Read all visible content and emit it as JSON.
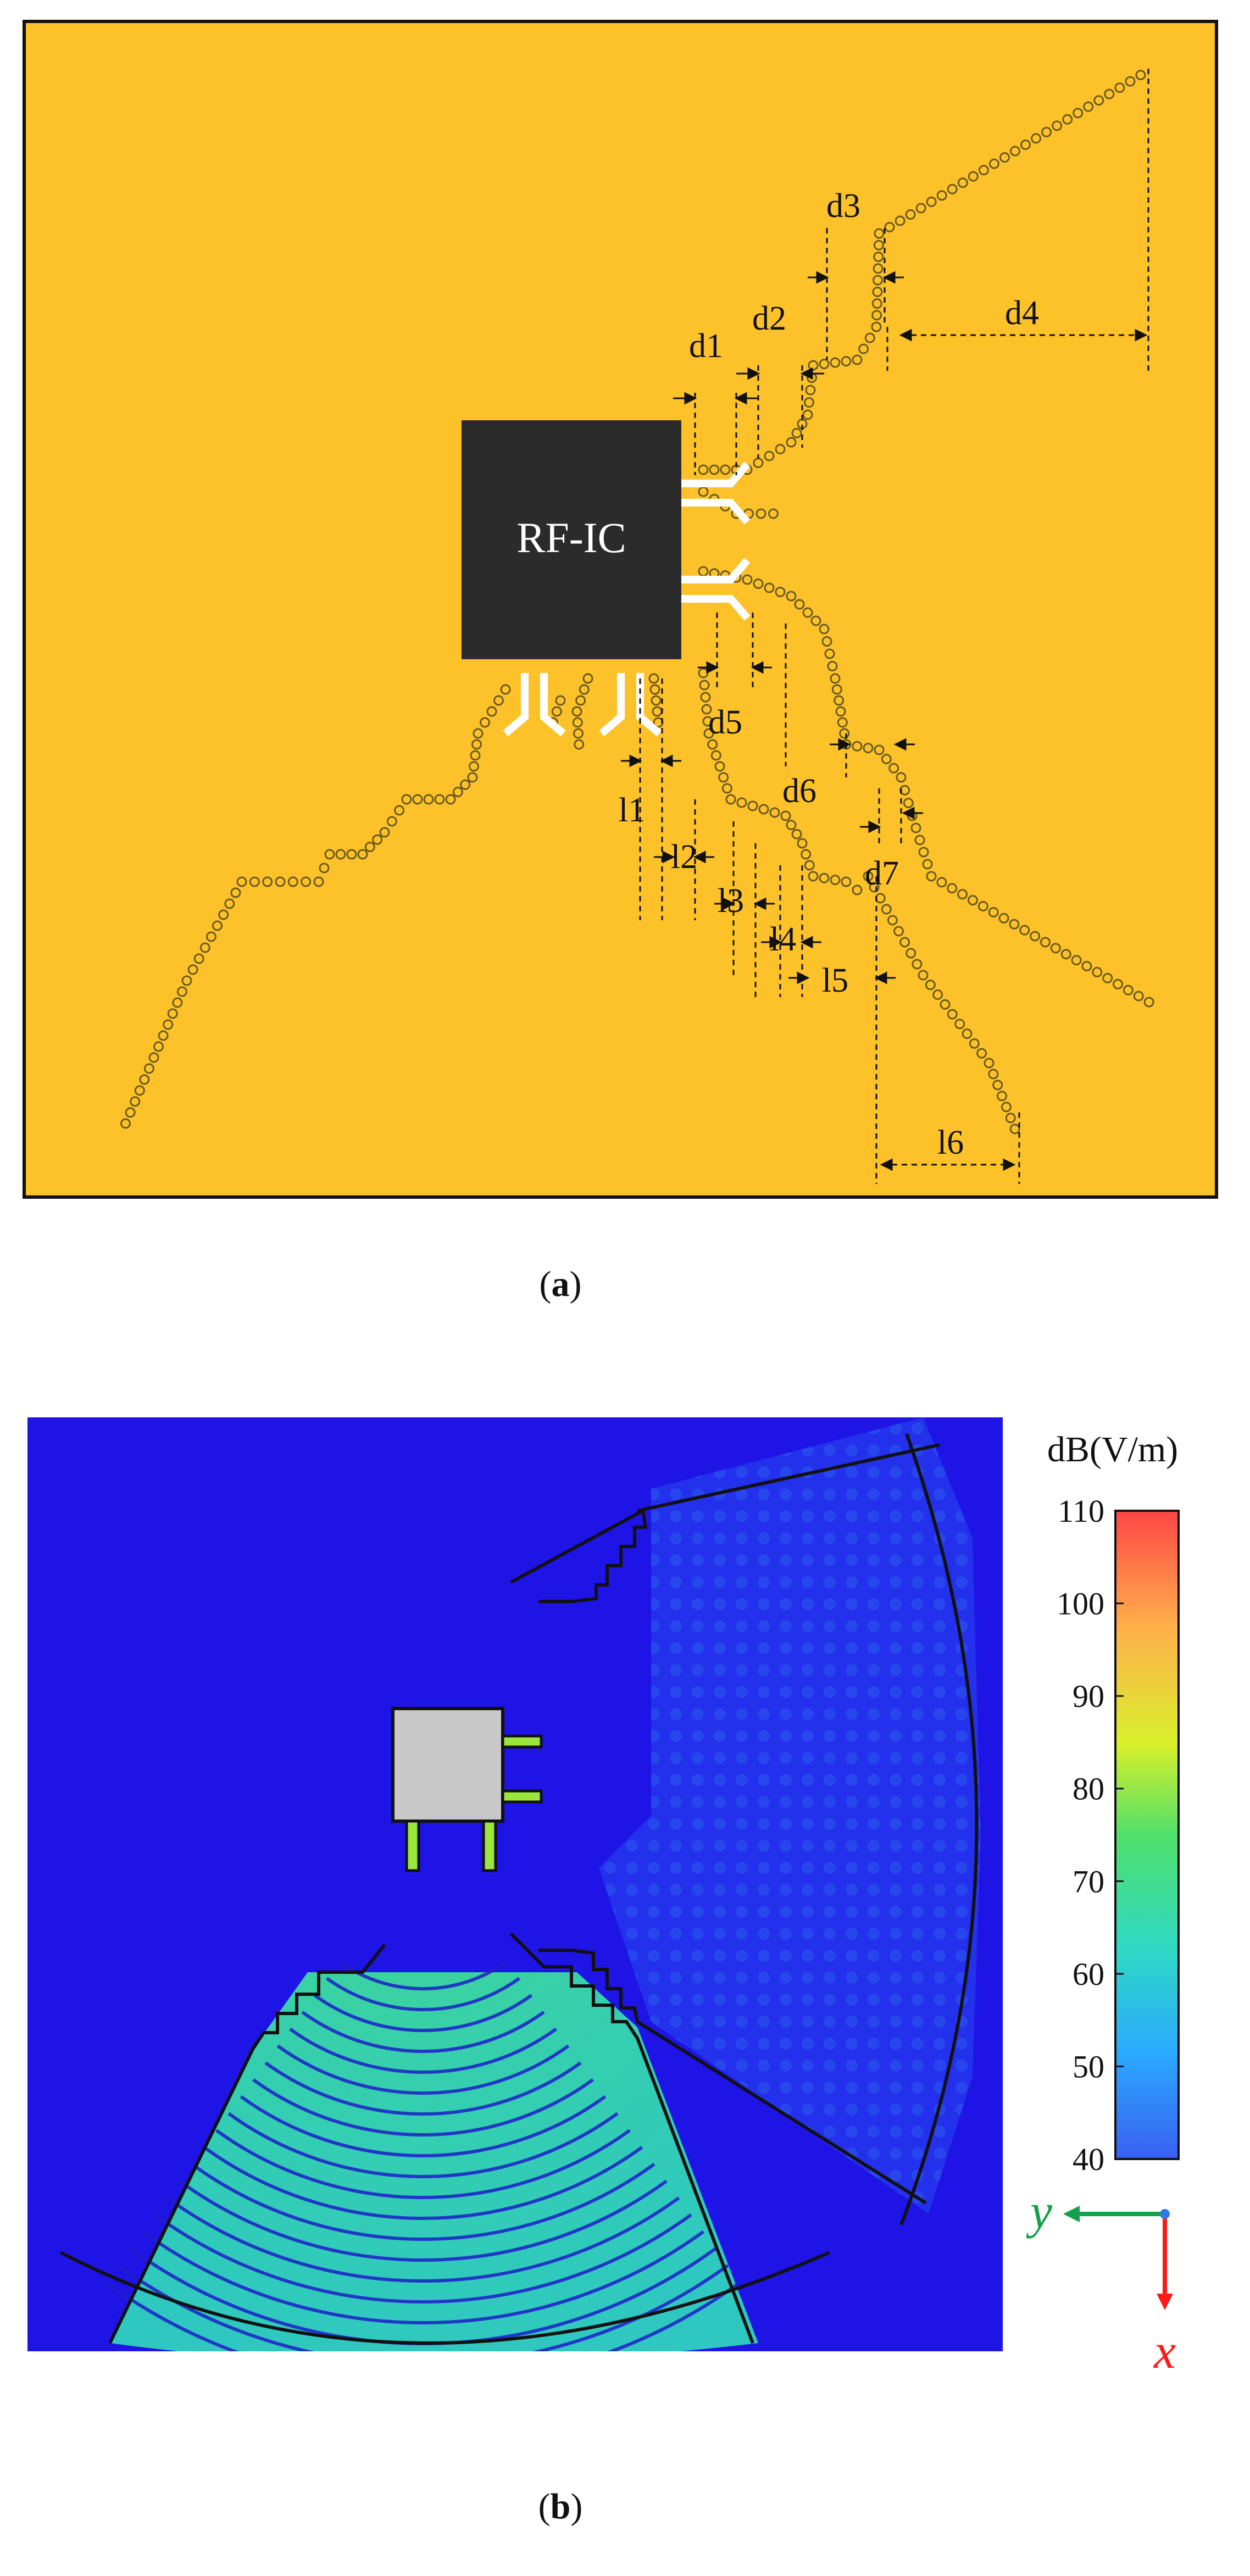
{
  "panel_a": {
    "caption_letter": "a",
    "chip_label": "RF-IC",
    "dimension_labels": [
      "d1",
      "d2",
      "d3",
      "d4",
      "d5",
      "d6",
      "d7",
      "l1",
      "l2",
      "l3",
      "l4",
      "l5",
      "l6"
    ]
  },
  "panel_b": {
    "caption_letter": "b",
    "colorbar": {
      "unit": "dB(V/m)",
      "ticks": [
        "110",
        "100",
        "90",
        "80",
        "70",
        "60",
        "50",
        "40"
      ],
      "stops": [
        "#ff4646",
        "#ffb04a",
        "#d9f02b",
        "#4fe06a",
        "#2fd8c6",
        "#2aa8ff",
        "#3a60f2"
      ]
    },
    "axes": {
      "y_label": "y",
      "x_label": "x",
      "y_color": "#14a04a",
      "x_color": "#ff1a1a"
    }
  },
  "colors": {
    "substrate": "#fdc22a",
    "chip": "#2b2b2b",
    "via": "#6b5a1e",
    "field_background": "#1e14e6"
  }
}
